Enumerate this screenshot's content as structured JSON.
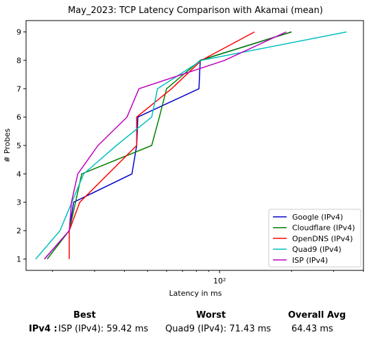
{
  "chart_data": {
    "type": "line",
    "title": "May_2023: TCP Latency Comparison with Akamai (mean)",
    "xlabel": "Latency in ms",
    "ylabel": "# Probes",
    "x_scale": "log",
    "xlim": [
      15.5,
      400
    ],
    "ylim": [
      0.6,
      9.4
    ],
    "x_ticks": [
      {
        "value": 100,
        "label": "10²"
      }
    ],
    "y_ticks": [
      1,
      2,
      3,
      4,
      5,
      6,
      7,
      8,
      9
    ],
    "grid": false,
    "legend_position": "lower right",
    "series": [
      {
        "name": "Google (IPv4)",
        "color": "#0000cc",
        "points": [
          [
            18.5,
            1
          ],
          [
            23.5,
            2
          ],
          [
            24.5,
            3
          ],
          [
            43,
            4
          ],
          [
            45,
            5
          ],
          [
            45.5,
            6
          ],
          [
            82,
            7
          ],
          [
            83,
            8
          ],
          [
            200,
            9
          ]
        ]
      },
      {
        "name": "Cloudflare (IPv4)",
        "color": "#008000",
        "points": [
          [
            19,
            1
          ],
          [
            23.5,
            2
          ],
          [
            26.5,
            4
          ],
          [
            52,
            5
          ],
          [
            56,
            6
          ],
          [
            60,
            7
          ],
          [
            83,
            8
          ],
          [
            200,
            9
          ]
        ]
      },
      {
        "name": "OpenDNS (IPv4)",
        "color": "#ff0000",
        "points": [
          [
            23.5,
            1
          ],
          [
            23.5,
            2
          ],
          [
            26,
            3
          ],
          [
            45,
            5
          ],
          [
            45,
            6
          ],
          [
            63,
            7
          ],
          [
            84,
            8
          ],
          [
            140,
            9
          ]
        ]
      },
      {
        "name": "Quad9 (IPv4)",
        "color": "#00bfbf",
        "points": [
          [
            17,
            1
          ],
          [
            21.5,
            2
          ],
          [
            27,
            4
          ],
          [
            37,
            5
          ],
          [
            52,
            6
          ],
          [
            55,
            7
          ],
          [
            84,
            8
          ],
          [
            340,
            9
          ]
        ]
      },
      {
        "name": "ISP (IPv4)",
        "color": "#bf00bf",
        "points": [
          [
            18.5,
            1
          ],
          [
            23.5,
            2
          ],
          [
            24,
            3
          ],
          [
            25.5,
            4
          ],
          [
            31,
            5
          ],
          [
            41,
            6
          ],
          [
            46,
            7
          ],
          [
            105,
            8
          ],
          [
            190,
            9
          ]
        ]
      }
    ]
  },
  "summary": {
    "best_header": "Best",
    "worst_header": "Worst",
    "avg_header": "Overall Avg",
    "row_label": "IPv4 :",
    "best_value": "ISP (IPv4): 59.42 ms",
    "worst_value": "Quad9 (IPv4): 71.43 ms",
    "avg_value": "64.43 ms"
  }
}
